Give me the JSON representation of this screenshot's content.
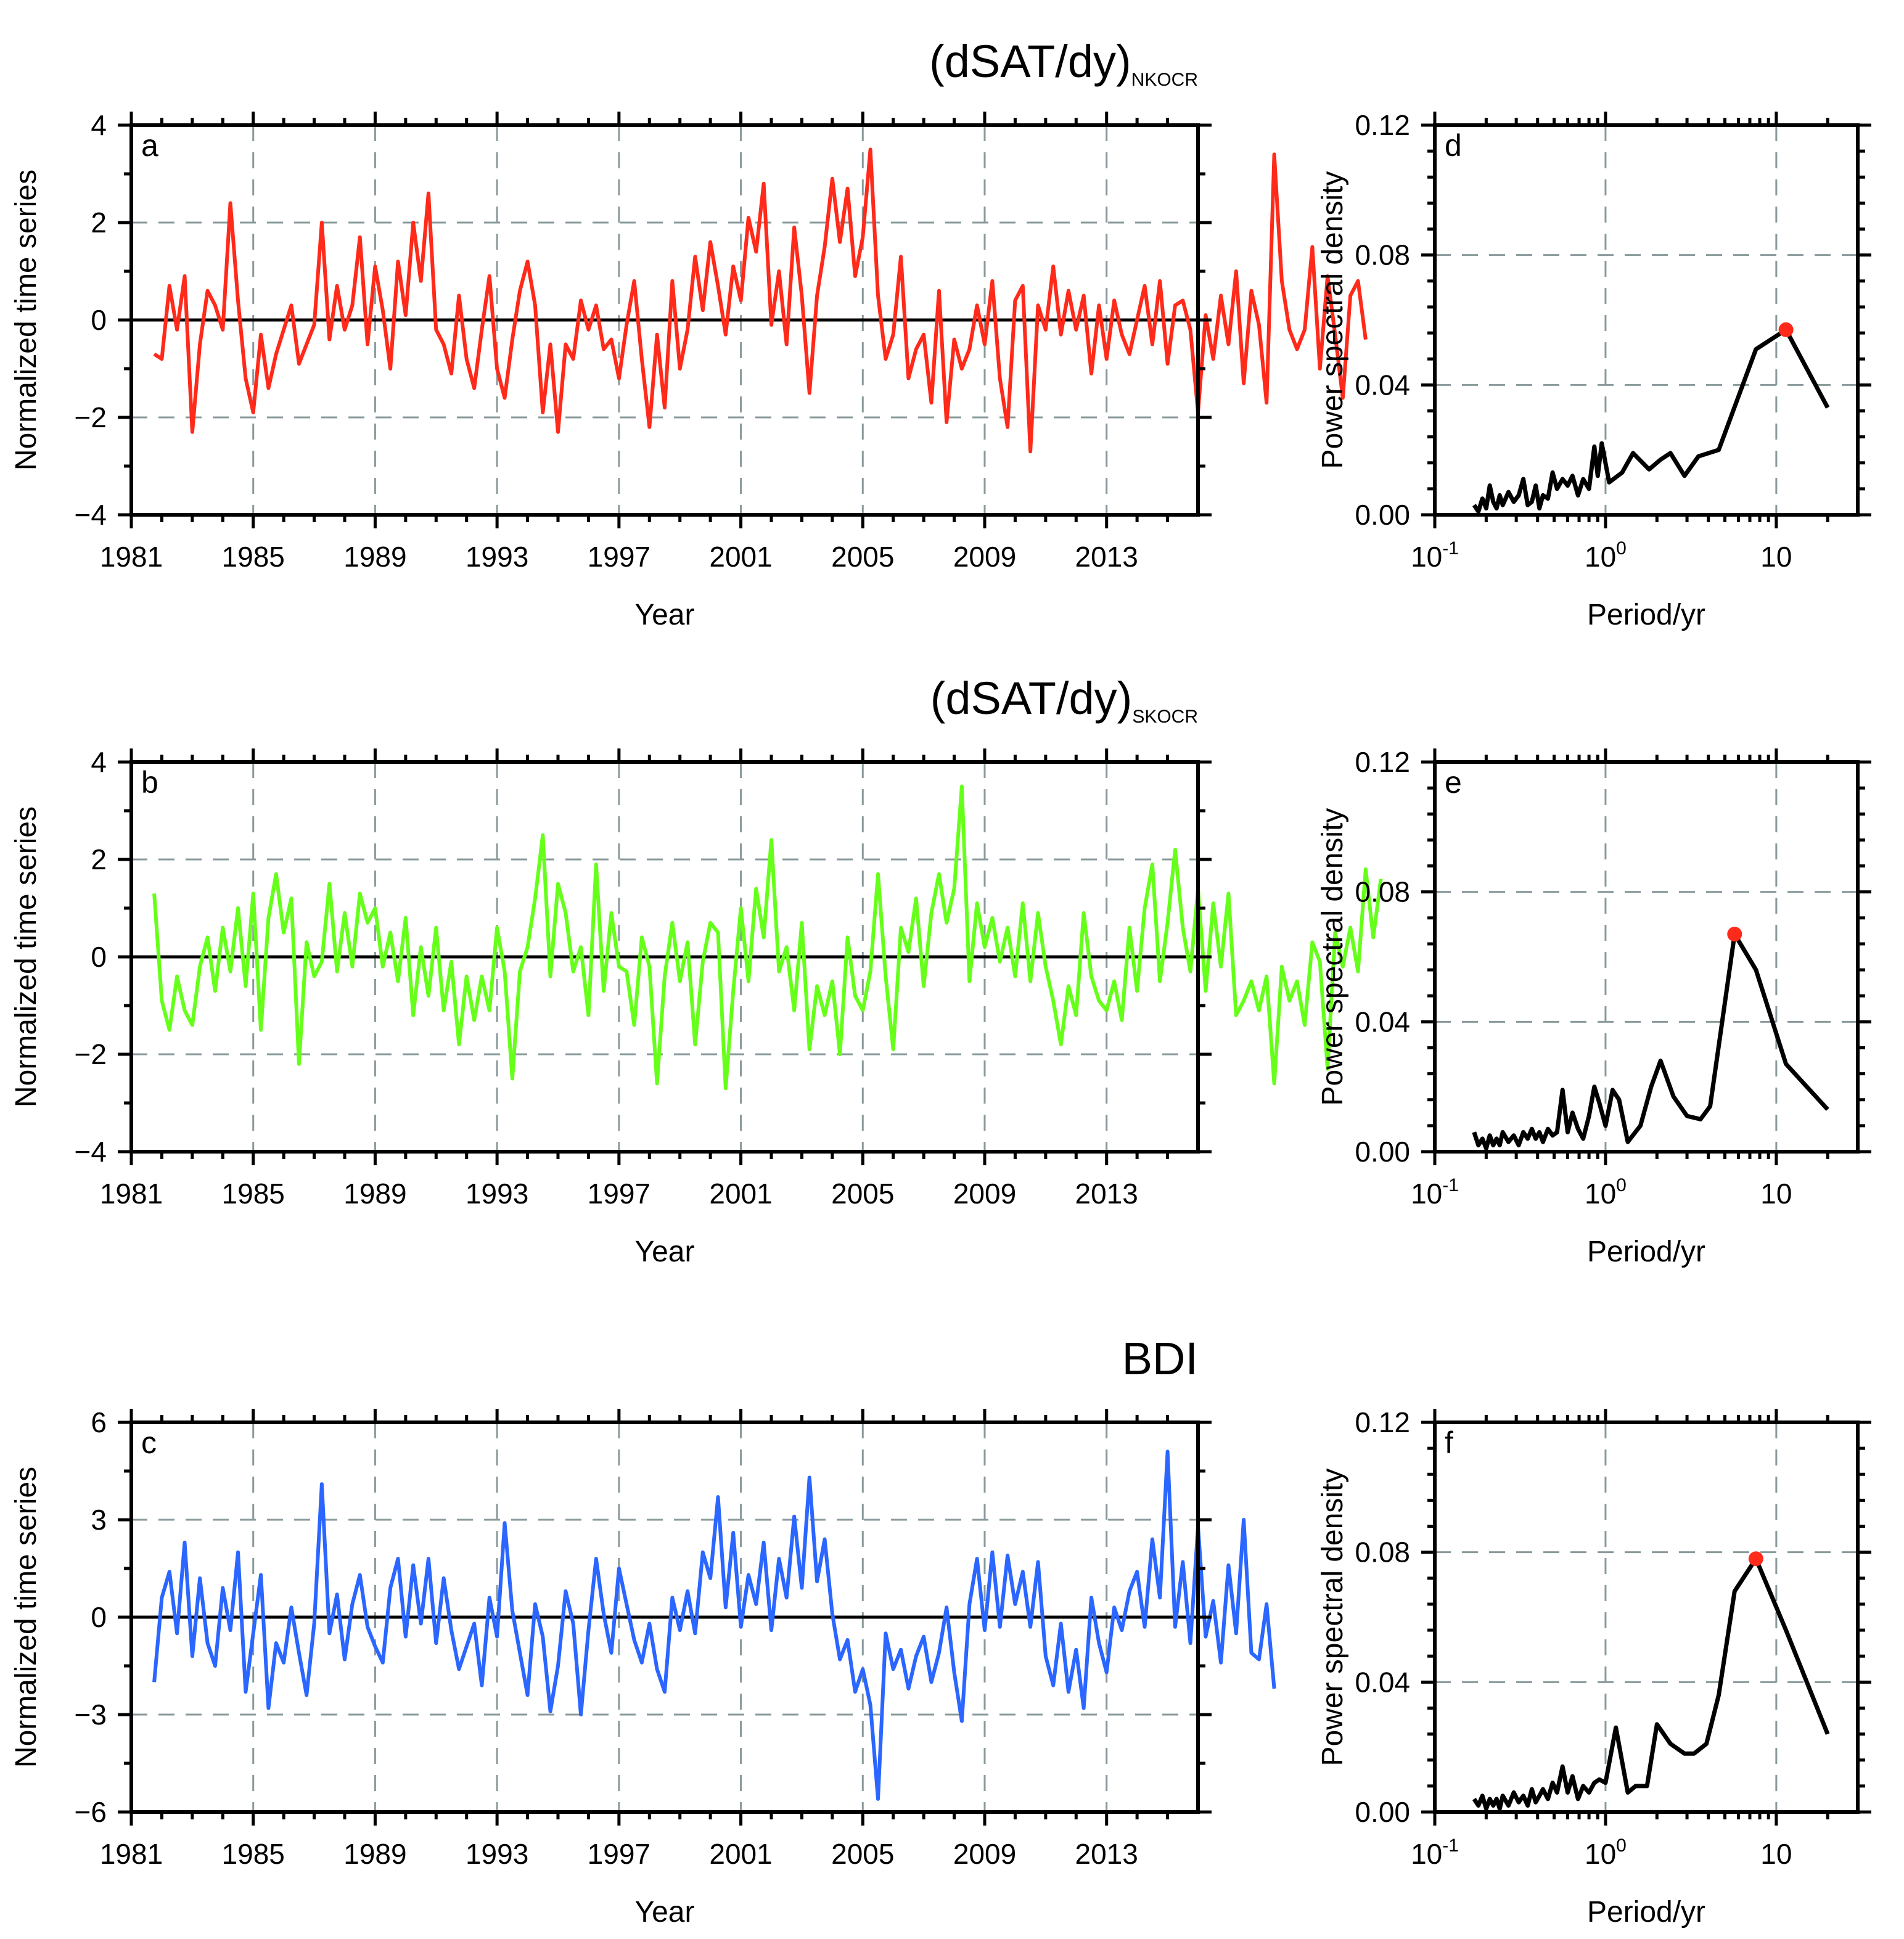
{
  "figure": {
    "series_colors": [
      "#ff2a1a",
      "#66ff1a",
      "#2a66ff"
    ],
    "psd_line_color": "#000000",
    "peak_marker_color": "#ff2a1a",
    "grid_color": "#8a9a9c"
  },
  "chart_data": [
    {
      "id": "a",
      "type": "line",
      "panel_label": "a",
      "title": "(dSAT/dy)",
      "title_subscript": "NKOCR",
      "xlabel": "Year",
      "ylabel": "Normalized time series",
      "xlim": [
        1981,
        2016
      ],
      "ylim": [
        -4,
        4
      ],
      "x_ticks": [
        1981,
        1985,
        1989,
        1993,
        1997,
        2001,
        2005,
        2009,
        2013
      ],
      "x_tick_labels": [
        "1981",
        "1985",
        "1989",
        "1993",
        "1997",
        "2001",
        "2005",
        "2009",
        "2013"
      ],
      "y_ticks": [
        -4,
        -2,
        0,
        2,
        4
      ],
      "y_tick_labels": [
        "−4",
        "−2",
        "0",
        "2",
        "4"
      ],
      "grid": true,
      "series": [
        {
          "name": "NKOCR dSAT/dy",
          "x_start": 1981.75,
          "x_step": 0.25,
          "values": [
            -0.7,
            -0.8,
            0.7,
            -0.2,
            0.9,
            -2.3,
            -0.5,
            0.6,
            0.3,
            -0.2,
            2.4,
            0.4,
            -1.2,
            -1.9,
            -0.3,
            -1.4,
            -0.7,
            -0.2,
            0.3,
            -0.9,
            -0.5,
            -0.1,
            2.0,
            -0.4,
            0.7,
            -0.2,
            0.3,
            1.7,
            -0.5,
            1.1,
            0.2,
            -1.0,
            1.2,
            0.1,
            2.0,
            0.8,
            2.6,
            -0.2,
            -0.5,
            -1.1,
            0.5,
            -0.8,
            -1.4,
            -0.2,
            0.9,
            -1.0,
            -1.6,
            -0.4,
            0.6,
            1.2,
            0.3,
            -1.9,
            -0.5,
            -2.3,
            -0.5,
            -0.8,
            0.4,
            -0.2,
            0.3,
            -0.6,
            -0.4,
            -1.2,
            -0.1,
            0.8,
            -0.8,
            -2.2,
            -0.3,
            -1.8,
            0.8,
            -1.0,
            -0.2,
            1.3,
            0.2,
            1.6,
            0.7,
            -0.3,
            1.1,
            0.4,
            2.1,
            1.4,
            2.8,
            -0.1,
            1.0,
            -0.5,
            1.9,
            0.5,
            -1.5,
            0.5,
            1.5,
            2.9,
            1.6,
            2.7,
            0.9,
            1.7,
            3.5,
            0.5,
            -0.8,
            -0.3,
            1.3,
            -1.2,
            -0.6,
            -0.3,
            -1.7,
            0.6,
            -2.1,
            -0.4,
            -1.0,
            -0.6,
            0.3,
            -0.5,
            0.8,
            -1.2,
            -2.2,
            0.4,
            0.7,
            -2.7,
            0.3,
            -0.2,
            1.1,
            -0.3,
            0.6,
            -0.2,
            0.5,
            -1.1,
            0.3,
            -0.8,
            0.4,
            -0.3,
            -0.7,
            0.0,
            0.7,
            -0.5,
            0.8,
            -0.9,
            0.3,
            0.4,
            -0.2,
            -1.9,
            0.1,
            -0.8,
            0.5,
            -0.5,
            1.0,
            -1.3,
            0.6,
            -0.1,
            -1.7,
            3.4,
            0.8,
            -0.2,
            -0.6,
            -0.2,
            1.5,
            -1.0,
            0.9,
            -0.3,
            -1.6,
            0.5,
            0.8,
            -0.4
          ]
        }
      ]
    },
    {
      "id": "d",
      "type": "line",
      "panel_label": "d",
      "xlabel": "Period/yr",
      "ylabel": "Power spectral density",
      "x_scale": "log",
      "xlim": [
        0.1,
        30
      ],
      "ylim": [
        0,
        0.12
      ],
      "x_ticks": [
        0.1,
        1,
        10
      ],
      "x_tick_labels": [
        {
          "base": "10",
          "exp": "-1"
        },
        {
          "base": "10",
          "exp": "0"
        },
        {
          "base": "10",
          "exp": ""
        }
      ],
      "y_ticks": [
        0.0,
        0.04,
        0.08,
        0.12
      ],
      "y_tick_labels": [
        "0.00",
        "0.04",
        "0.08",
        "0.12"
      ],
      "grid": true,
      "peak": {
        "period": 11.4,
        "psd": 0.057
      },
      "series": [
        {
          "name": "PSD",
          "x": [
            0.17,
            0.18,
            0.19,
            0.2,
            0.21,
            0.22,
            0.23,
            0.24,
            0.25,
            0.27,
            0.29,
            0.31,
            0.33,
            0.35,
            0.37,
            0.39,
            0.41,
            0.43,
            0.46,
            0.49,
            0.52,
            0.56,
            0.6,
            0.64,
            0.69,
            0.74,
            0.8,
            0.86,
            0.9,
            0.95,
            1.05,
            1.25,
            1.45,
            1.8,
            2.1,
            2.4,
            2.9,
            3.5,
            4.6,
            7.6,
            11.4,
            20.0
          ],
          "values": [
            0.003,
            0.001,
            0.005,
            0.002,
            0.009,
            0.004,
            0.002,
            0.006,
            0.003,
            0.007,
            0.004,
            0.006,
            0.011,
            0.003,
            0.004,
            0.009,
            0.002,
            0.006,
            0.005,
            0.013,
            0.008,
            0.011,
            0.009,
            0.012,
            0.006,
            0.011,
            0.008,
            0.021,
            0.012,
            0.022,
            0.01,
            0.013,
            0.019,
            0.014,
            0.017,
            0.019,
            0.012,
            0.018,
            0.02,
            0.051,
            0.057,
            0.033
          ]
        }
      ]
    },
    {
      "id": "b",
      "type": "line",
      "panel_label": "b",
      "title": "(dSAT/dy)",
      "title_subscript": "SKOCR",
      "xlabel": "Year",
      "ylabel": "Normalized time series",
      "xlim": [
        1981,
        2016
      ],
      "ylim": [
        -4,
        4
      ],
      "x_ticks": [
        1981,
        1985,
        1989,
        1993,
        1997,
        2001,
        2005,
        2009,
        2013
      ],
      "x_tick_labels": [
        "1981",
        "1985",
        "1989",
        "1993",
        "1997",
        "2001",
        "2005",
        "2009",
        "2013"
      ],
      "y_ticks": [
        -4,
        -2,
        0,
        2,
        4
      ],
      "y_tick_labels": [
        "−4",
        "−2",
        "0",
        "2",
        "4"
      ],
      "grid": true,
      "series": [
        {
          "name": "SKOCR dSAT/dy",
          "x_start": 1981.75,
          "x_step": 0.25,
          "values": [
            1.3,
            -0.9,
            -1.5,
            -0.4,
            -1.1,
            -1.4,
            -0.2,
            0.4,
            -0.7,
            0.6,
            -0.3,
            1.0,
            -0.6,
            1.3,
            -1.5,
            0.8,
            1.7,
            0.5,
            1.2,
            -2.2,
            0.3,
            -0.4,
            -0.1,
            1.5,
            -0.3,
            0.9,
            -0.2,
            1.3,
            0.7,
            1.0,
            -0.2,
            0.5,
            -0.5,
            0.8,
            -1.2,
            0.2,
            -0.8,
            0.6,
            -1.1,
            -0.1,
            -1.8,
            -0.4,
            -1.3,
            -0.4,
            -1.1,
            0.6,
            -0.3,
            -2.5,
            -0.3,
            0.2,
            1.2,
            2.5,
            -0.4,
            1.5,
            0.9,
            -0.3,
            0.2,
            -1.2,
            1.9,
            -0.7,
            0.9,
            -0.2,
            -0.3,
            -1.4,
            0.4,
            -0.2,
            -2.6,
            -0.4,
            0.7,
            -0.5,
            0.3,
            -1.8,
            -0.1,
            0.7,
            0.5,
            -2.7,
            -0.7,
            1.0,
            -0.5,
            1.4,
            0.4,
            2.4,
            -0.3,
            0.2,
            -1.1,
            0.7,
            -1.9,
            -0.6,
            -1.2,
            -0.5,
            -2.0,
            0.4,
            -0.8,
            -1.1,
            -0.3,
            1.7,
            -0.4,
            -1.9,
            0.6,
            0.1,
            1.2,
            -0.6,
            0.9,
            1.7,
            0.7,
            1.4,
            3.5,
            -0.5,
            1.1,
            0.2,
            0.8,
            -0.1,
            0.6,
            -0.4,
            1.1,
            -0.5,
            0.9,
            -0.2,
            -0.9,
            -1.8,
            -0.6,
            -1.2,
            0.9,
            -0.4,
            -0.9,
            -1.1,
            -0.5,
            -1.3,
            0.6,
            -0.7,
            1.0,
            1.9,
            -0.5,
            0.7,
            2.2,
            0.6,
            -0.3,
            1.4,
            -0.7,
            1.1,
            -0.2,
            1.3,
            -1.2,
            -0.9,
            -0.5,
            -1.1,
            -0.4,
            -2.6,
            -0.2,
            -0.9,
            -0.5,
            -1.4,
            0.3,
            -0.1,
            -2.3,
            0.5,
            -0.2,
            0.6,
            -0.3,
            1.8,
            0.4,
            1.6
          ]
        }
      ]
    },
    {
      "id": "e",
      "type": "line",
      "panel_label": "e",
      "xlabel": "Period/yr",
      "ylabel": "Power spectral density",
      "x_scale": "log",
      "xlim": [
        0.1,
        30
      ],
      "ylim": [
        0,
        0.12
      ],
      "x_ticks": [
        0.1,
        1,
        10
      ],
      "x_tick_labels": [
        {
          "base": "10",
          "exp": "-1"
        },
        {
          "base": "10",
          "exp": "0"
        },
        {
          "base": "10",
          "exp": ""
        }
      ],
      "y_ticks": [
        0.0,
        0.04,
        0.08,
        0.12
      ],
      "y_tick_labels": [
        "0.00",
        "0.04",
        "0.08",
        "0.12"
      ],
      "grid": true,
      "peak": {
        "period": 5.7,
        "psd": 0.067
      },
      "series": [
        {
          "name": "PSD",
          "x": [
            0.17,
            0.18,
            0.19,
            0.2,
            0.21,
            0.22,
            0.23,
            0.24,
            0.25,
            0.27,
            0.29,
            0.31,
            0.33,
            0.35,
            0.37,
            0.39,
            0.41,
            0.43,
            0.46,
            0.49,
            0.52,
            0.56,
            0.6,
            0.64,
            0.69,
            0.74,
            0.8,
            0.86,
            0.92,
            1.0,
            1.1,
            1.2,
            1.35,
            1.6,
            1.85,
            2.1,
            2.5,
            3.0,
            3.6,
            4.1,
            5.7,
            7.6,
            11.4,
            20.0
          ],
          "values": [
            0.006,
            0.002,
            0.004,
            0.001,
            0.005,
            0.002,
            0.004,
            0.002,
            0.006,
            0.003,
            0.005,
            0.002,
            0.006,
            0.004,
            0.007,
            0.004,
            0.006,
            0.003,
            0.007,
            0.005,
            0.006,
            0.019,
            0.006,
            0.012,
            0.007,
            0.004,
            0.011,
            0.02,
            0.015,
            0.008,
            0.019,
            0.016,
            0.003,
            0.008,
            0.02,
            0.028,
            0.017,
            0.011,
            0.01,
            0.014,
            0.067,
            0.056,
            0.027,
            0.013
          ]
        }
      ]
    },
    {
      "id": "c",
      "type": "line",
      "panel_label": "c",
      "title": "BDI",
      "title_subscript": "",
      "xlabel": "Year",
      "ylabel": "Normalized time series",
      "xlim": [
        1981,
        2016
      ],
      "ylim": [
        -6,
        6
      ],
      "x_ticks": [
        1981,
        1985,
        1989,
        1993,
        1997,
        2001,
        2005,
        2009,
        2013
      ],
      "x_tick_labels": [
        "1981",
        "1985",
        "1989",
        "1993",
        "1997",
        "2001",
        "2005",
        "2009",
        "2013"
      ],
      "y_ticks": [
        -6,
        -3,
        0,
        3,
        6
      ],
      "y_tick_labels": [
        "−6",
        "−3",
        "0",
        "3",
        "6"
      ],
      "grid": true,
      "series": [
        {
          "name": "BDI",
          "x_start": 1981.75,
          "x_step": 0.25,
          "values": [
            -2.0,
            0.6,
            1.4,
            -0.5,
            2.3,
            -1.2,
            1.2,
            -0.8,
            -1.5,
            0.9,
            -0.4,
            2.0,
            -2.3,
            -0.5,
            1.3,
            -2.8,
            -0.8,
            -1.4,
            0.3,
            -1.1,
            -2.4,
            -0.2,
            4.1,
            -0.5,
            0.7,
            -1.3,
            0.4,
            1.3,
            -0.3,
            -0.9,
            -1.4,
            0.9,
            1.8,
            -0.6,
            1.6,
            -0.2,
            1.8,
            -0.8,
            1.2,
            -0.4,
            -1.6,
            -0.9,
            -0.2,
            -2.1,
            0.6,
            -0.6,
            2.9,
            0.2,
            -1.1,
            -2.4,
            0.4,
            -0.6,
            -2.9,
            -1.5,
            0.8,
            -0.2,
            -3.0,
            -0.4,
            1.8,
            0.1,
            -1.1,
            1.5,
            0.4,
            -0.7,
            -1.4,
            -0.2,
            -1.6,
            -2.3,
            0.6,
            -0.4,
            0.8,
            -0.5,
            2.0,
            1.2,
            3.7,
            0.3,
            2.6,
            -0.3,
            1.3,
            0.4,
            2.3,
            -0.4,
            1.8,
            0.6,
            3.1,
            0.9,
            4.3,
            1.1,
            2.4,
            0.1,
            -1.3,
            -0.7,
            -2.3,
            -1.6,
            -2.7,
            -5.6,
            -0.5,
            -1.6,
            -1.0,
            -2.2,
            -1.2,
            -0.6,
            -2.0,
            -1.1,
            0.3,
            -1.7,
            -3.2,
            0.4,
            1.8,
            -0.4,
            2.0,
            -0.3,
            1.9,
            0.4,
            1.4,
            -0.3,
            1.7,
            -1.2,
            -2.1,
            -0.2,
            -2.3,
            -1.0,
            -2.8,
            0.6,
            -0.8,
            -1.7,
            0.3,
            -0.4,
            0.8,
            1.4,
            -0.3,
            2.4,
            0.6,
            5.1,
            -0.3,
            1.7,
            -0.8,
            2.8,
            -0.6,
            0.5,
            -1.4,
            1.6,
            -0.5,
            3.0,
            -1.1,
            -1.3,
            0.4,
            -2.2
          ]
        }
      ]
    },
    {
      "id": "f",
      "type": "line",
      "panel_label": "f",
      "xlabel": "Period/yr",
      "ylabel": "Power spectral density",
      "x_scale": "log",
      "xlim": [
        0.1,
        30
      ],
      "ylim": [
        0,
        0.12
      ],
      "x_ticks": [
        0.1,
        1,
        10
      ],
      "x_tick_labels": [
        {
          "base": "10",
          "exp": "-1"
        },
        {
          "base": "10",
          "exp": "0"
        },
        {
          "base": "10",
          "exp": ""
        }
      ],
      "y_ticks": [
        0.0,
        0.04,
        0.08,
        0.12
      ],
      "y_tick_labels": [
        "0.00",
        "0.04",
        "0.08",
        "0.12"
      ],
      "grid": true,
      "peak": {
        "period": 7.6,
        "psd": 0.078
      },
      "series": [
        {
          "name": "PSD",
          "x": [
            0.17,
            0.18,
            0.19,
            0.2,
            0.21,
            0.22,
            0.23,
            0.24,
            0.25,
            0.27,
            0.29,
            0.31,
            0.33,
            0.35,
            0.37,
            0.39,
            0.41,
            0.43,
            0.46,
            0.49,
            0.52,
            0.56,
            0.6,
            0.64,
            0.69,
            0.74,
            0.8,
            0.86,
            0.92,
            1.0,
            1.15,
            1.35,
            1.5,
            1.75,
            2.0,
            2.4,
            2.9,
            3.3,
            3.9,
            4.6,
            5.7,
            7.6,
            11.4,
            20.0
          ],
          "values": [
            0.004,
            0.002,
            0.005,
            0.001,
            0.004,
            0.002,
            0.004,
            0.001,
            0.005,
            0.002,
            0.006,
            0.003,
            0.005,
            0.002,
            0.007,
            0.003,
            0.005,
            0.007,
            0.004,
            0.009,
            0.006,
            0.014,
            0.006,
            0.011,
            0.004,
            0.008,
            0.006,
            0.009,
            0.01,
            0.009,
            0.026,
            0.006,
            0.008,
            0.008,
            0.027,
            0.021,
            0.018,
            0.018,
            0.021,
            0.036,
            0.068,
            0.078,
            0.056,
            0.024
          ]
        }
      ]
    }
  ]
}
